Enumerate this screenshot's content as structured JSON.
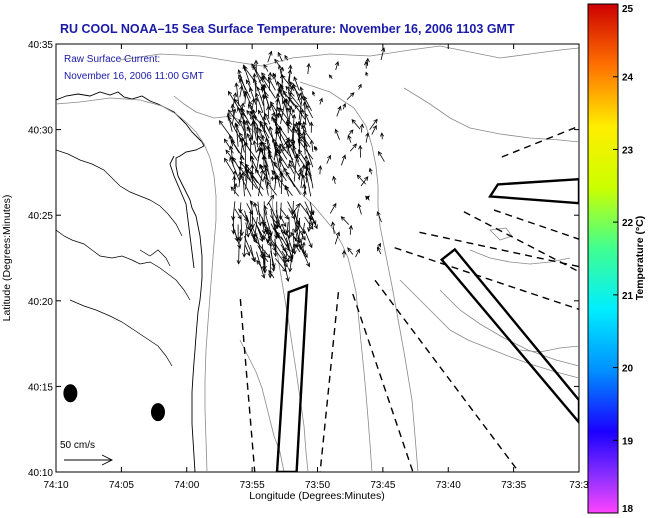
{
  "chart_data": {
    "type": "vector_map",
    "title": "RU COOL  NOAA–15  Sea Surface Temperature:  November 16, 2006 1103 GMT",
    "annotation": [
      "Raw Surface Current:",
      "November 16, 2006 11:00 GMT"
    ],
    "scale_label": "50 cm/s",
    "xlabel": "Longitude (Degrees:Minutes)",
    "ylabel": "Latitude (Degrees:Minutes)",
    "x_ticks": [
      "74:10",
      "74:05",
      "74:00",
      "73:55",
      "73:50",
      "73:45",
      "73:40",
      "73:35",
      "73:3"
    ],
    "y_ticks": [
      "40:10",
      "40:15",
      "40:20",
      "40:25",
      "40:30",
      "40:35"
    ],
    "xlim_min_west": [
      10,
      -30
    ],
    "ylim_min": [
      10,
      35
    ],
    "colorbar": {
      "label": "Temperature (°C)",
      "ticks": [
        "18",
        "19",
        "20",
        "21",
        "22",
        "23",
        "24",
        "25"
      ],
      "range": [
        18,
        25
      ]
    },
    "radar_sites": [
      {
        "lon_min_west": 8.9,
        "lat_min": 14.6
      },
      {
        "lon_min_west": 2.2,
        "lat_min": 13.5
      }
    ],
    "shipping_lanes_solid": [
      [
        [
          -7.8,
          20.5
        ],
        [
          -9.2,
          20.9
        ],
        [
          -8.4,
          10
        ],
        [
          -6.9,
          10
        ]
      ],
      [
        [
          -23.8,
          26.8
        ],
        [
          -30,
          27.1
        ],
        [
          -30,
          25.7
        ],
        [
          -23.2,
          26.1
        ]
      ],
      [
        [
          -20.5,
          23
        ],
        [
          -19.5,
          22.4
        ],
        [
          -30,
          12.9
        ],
        [
          -30,
          14.2
        ]
      ]
    ],
    "shipping_lanes_dashed": [
      [
        [
          -11.6,
          20.5
        ],
        [
          -10.2,
          10
        ]
      ],
      [
        [
          -4.1,
          20.1
        ],
        [
          -5.2,
          10
        ]
      ],
      [
        [
          -24.1,
          28.4
        ],
        [
          -30,
          30.2
        ]
      ],
      [
        [
          -23.5,
          25.3
        ],
        [
          -30,
          23.6
        ]
      ],
      [
        [
          -17.8,
          24
        ],
        [
          -30,
          22
        ]
      ],
      [
        [
          -15.9,
          23.1
        ],
        [
          -30,
          19.5
        ]
      ],
      [
        [
          -14.4,
          21.2
        ],
        [
          -25.4,
          10
        ]
      ],
      [
        [
          -12.7,
          20.4
        ],
        [
          -17.3,
          10
        ]
      ],
      [
        [
          -21.2,
          25.2
        ],
        [
          -30,
          21.7
        ]
      ]
    ]
  }
}
